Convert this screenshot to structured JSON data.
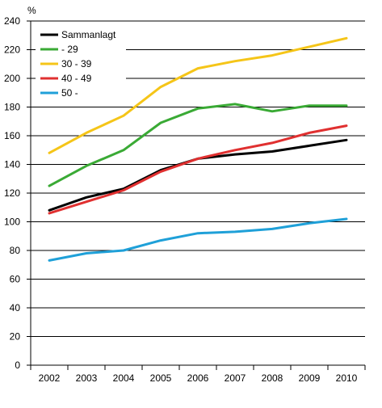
{
  "chart_data": {
    "type": "line",
    "title": "",
    "xlabel": "",
    "ylabel": "%",
    "ylim": [
      0,
      240
    ],
    "yticks": [
      0,
      20,
      40,
      60,
      80,
      100,
      120,
      140,
      160,
      180,
      200,
      220,
      240
    ],
    "grid": true,
    "legend": "top-left",
    "categories": [
      "2002",
      "2003",
      "2004",
      "2005",
      "2006",
      "2007",
      "2008",
      "2009",
      "2010"
    ],
    "series": [
      {
        "name": "Sammanlagt",
        "color": "#000000",
        "values": [
          108,
          117,
          123,
          136,
          144,
          147,
          149,
          153,
          157
        ]
      },
      {
        "name": "- 29",
        "color": "#3aaa35",
        "values": [
          125,
          139,
          150,
          169,
          179,
          182,
          177,
          181,
          181
        ]
      },
      {
        "name": "30 - 39",
        "color": "#f5c518",
        "values": [
          148,
          162,
          174,
          194,
          207,
          212,
          216,
          222,
          228
        ]
      },
      {
        "name": "40 - 49",
        "color": "#e03030",
        "values": [
          106,
          114,
          122,
          135,
          144,
          150,
          155,
          162,
          167
        ]
      },
      {
        "name": "50 -",
        "color": "#1fa0d8",
        "values": [
          73,
          78,
          80,
          87,
          92,
          93,
          95,
          99,
          102
        ]
      }
    ]
  }
}
